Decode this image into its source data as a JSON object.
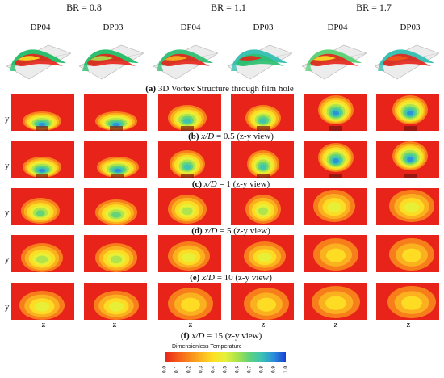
{
  "header": {
    "blowing_ratios": [
      "BR = 0.8",
      "BR = 1.1",
      "BR = 1.7"
    ],
    "cases": [
      "DP04",
      "DP03",
      "DP04",
      "DP03",
      "DP04",
      "DP03"
    ]
  },
  "captions": {
    "a": {
      "tag": "(a)",
      "text": " 3D Vortex Structure through film hole"
    },
    "b": {
      "tag": "(b)",
      "var": "x/D",
      "text": " = 0.5 (z-y view)"
    },
    "c": {
      "tag": "(c)",
      "var": "x/D",
      "text": " = 1 (z-y view)"
    },
    "d": {
      "tag": "(d)",
      "var": "x/D",
      "text": " = 5 (z-y view)"
    },
    "e": {
      "tag": "(e)",
      "var": "x/D",
      "text": " = 10 (z-y view)"
    },
    "f": {
      "tag": "(f)",
      "var": "x/D",
      "text": " = 15 (z-y view)"
    }
  },
  "axes": {
    "y": "y",
    "z": "z"
  },
  "colorbar": {
    "title": "Dimensionless Temperature",
    "ticks": [
      "0.0",
      "0.1",
      "0.2",
      "0.3",
      "0.4",
      "0.5",
      "0.6",
      "0.7",
      "0.8",
      "0.9",
      "1.0"
    ],
    "colors": [
      "#e8231a",
      "#f4561a",
      "#f9871b",
      "#fbb41f",
      "#fde024",
      "#e6f03a",
      "#a9e34e",
      "#5fd27a",
      "#3bc2b5",
      "#2a8fd9",
      "#1a3fd6"
    ]
  },
  "figure": {
    "background_color": "#e8231a",
    "high_color": "#1a3fd6"
  }
}
